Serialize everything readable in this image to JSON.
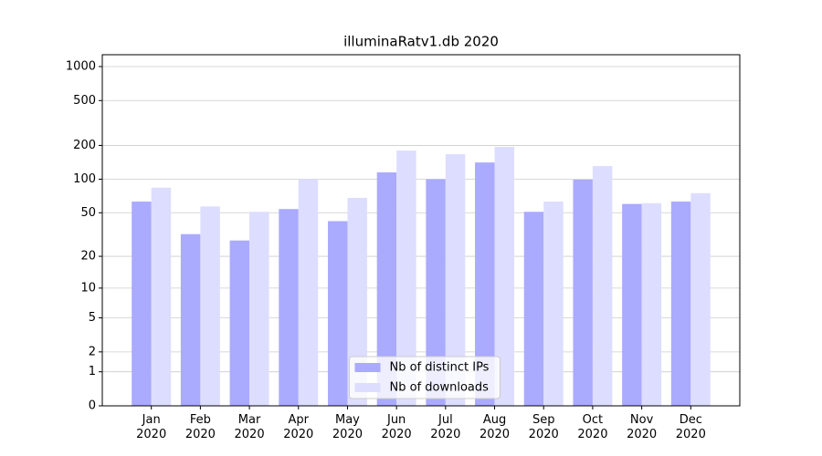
{
  "chart_data": {
    "type": "bar",
    "title": "illuminaRatv1.db 2020",
    "categories": [
      "Jan\n2020",
      "Feb\n2020",
      "Mar\n2020",
      "Apr\n2020",
      "May\n2020",
      "Jun\n2020",
      "Jul\n2020",
      "Aug\n2020",
      "Sep\n2020",
      "Oct\n2020",
      "Nov\n2020",
      "Dec\n2020"
    ],
    "series": [
      {
        "name": "Nb of distinct IPs",
        "color": "#aaaaff",
        "values": [
          63,
          32,
          28,
          54,
          42,
          115,
          100,
          141,
          51,
          99,
          60,
          63
        ]
      },
      {
        "name": "Nb of downloads",
        "color": "#ddddff",
        "values": [
          84,
          57,
          51,
          100,
          68,
          180,
          167,
          194,
          63,
          131,
          61,
          75
        ]
      }
    ],
    "yscale": "symlog",
    "ylim": [
      0,
      1273
    ],
    "yticks": [
      0,
      1,
      2,
      5,
      10,
      20,
      50,
      100,
      200,
      500,
      1000
    ],
    "grid": true,
    "legend": "lower center"
  }
}
